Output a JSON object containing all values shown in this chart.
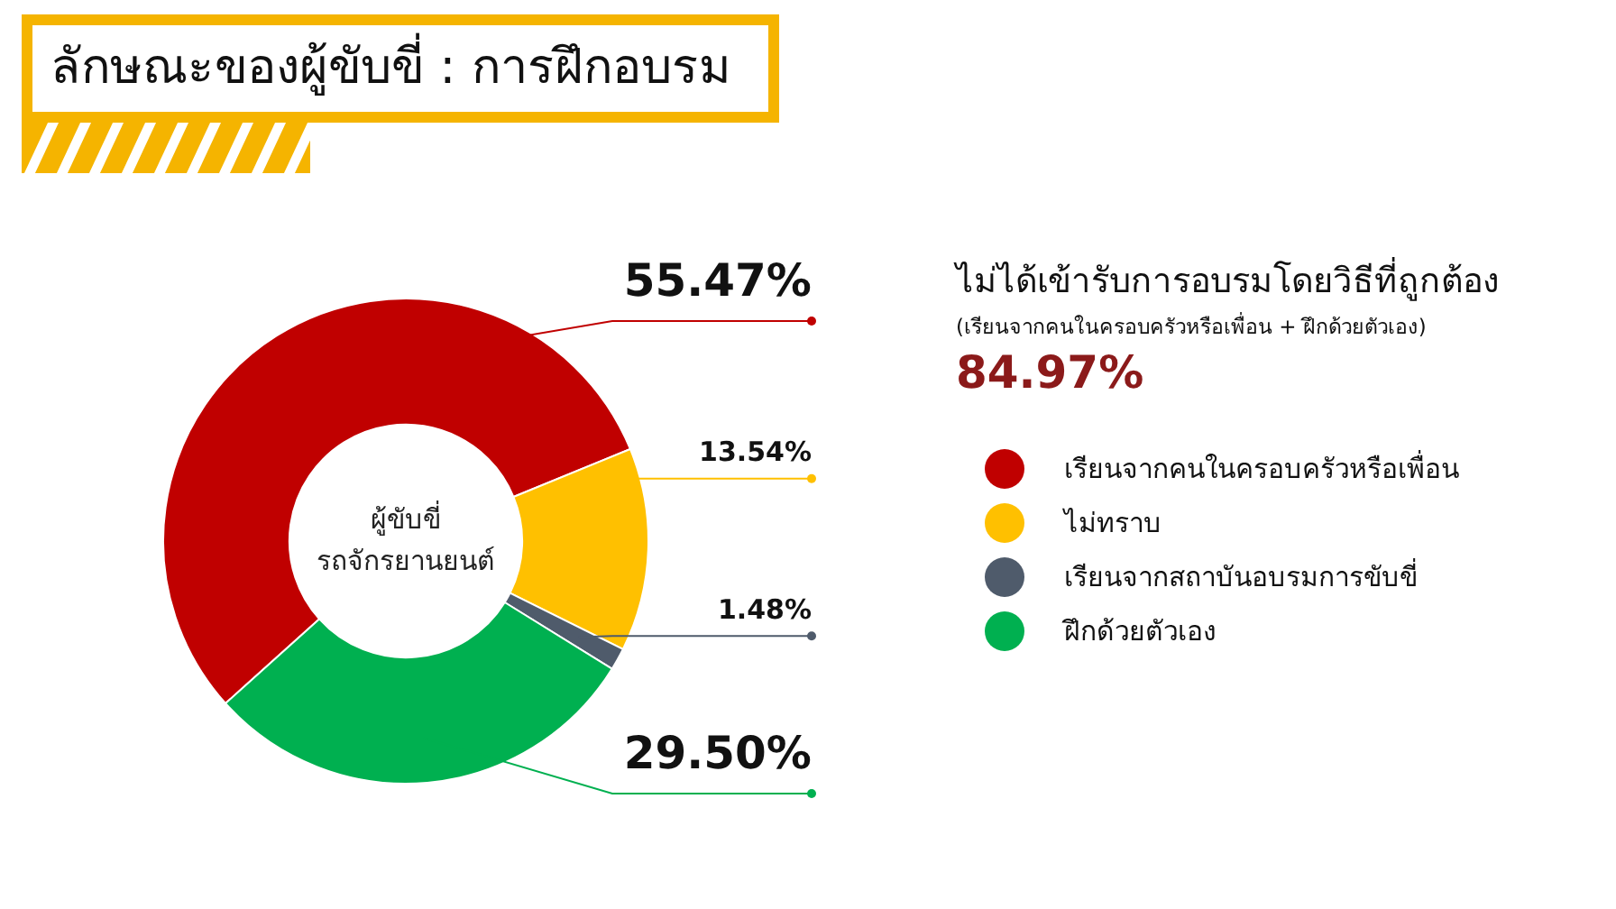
{
  "chart_data": {
    "type": "donut",
    "title": "ลักษณะของผู้ขับขี่ : การฝึกอบรม",
    "categories": [
      "เรียนจากคนในครอบครัวหรือเพื่อน",
      "ไม่ทราบ",
      "เรียนจากสถาบันอบรมการขับขี่",
      "ฝึกด้วยตัวเอง"
    ],
    "values": [
      55.47,
      13.54,
      1.48,
      29.5
    ],
    "colors": [
      "#c00000",
      "#ffc000",
      "#4f5b6b",
      "#00b050"
    ],
    "value_labels": [
      "55.47%",
      "13.54%",
      "1.48%",
      "29.50%"
    ],
    "legend": "right",
    "annotations": [
      "ผู้ขับขี่",
      "รถจักรยานยนต์",
      "ไม่ได้เข้ารับการอบรมโดยวิธีที่ถูกต้อง",
      "(เรียนจากคนในครอบครัวหรือเพื่อน + ฝึกด้วยตัวเอง)",
      "84.97%"
    ]
  }
}
